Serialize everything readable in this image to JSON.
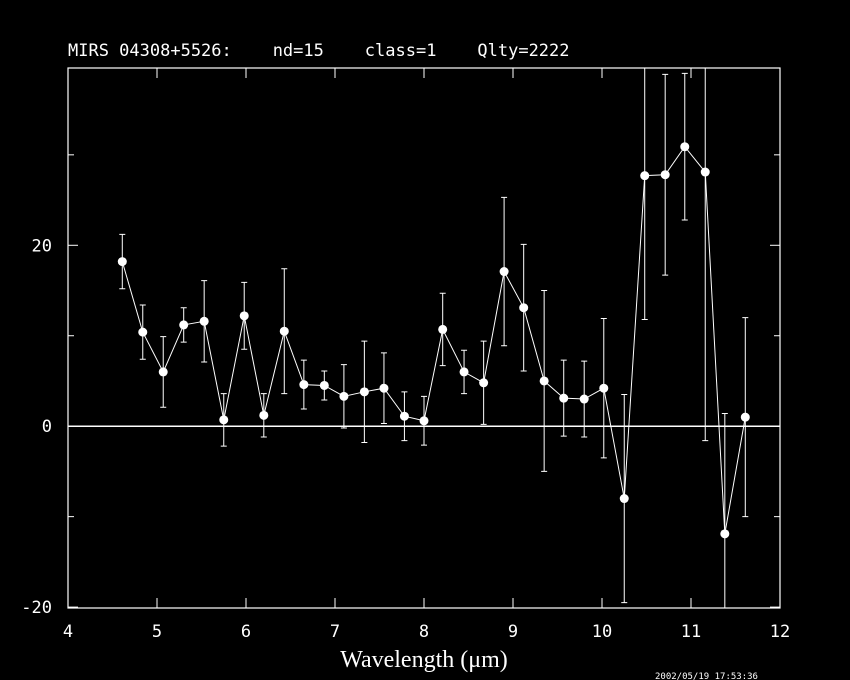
{
  "chart_data": {
    "type": "errorbar",
    "title": "MIRS 04308+5526:    nd=15    class=1    Qlty=2222",
    "x_label": "Wavelength (μm)",
    "timestamp": "2002/05/19 17:53:36",
    "x": [
      4.61,
      4.84,
      5.07,
      5.3,
      5.53,
      5.75,
      5.98,
      6.2,
      6.43,
      6.65,
      6.88,
      7.1,
      7.33,
      7.55,
      7.78,
      8.0,
      8.21,
      8.45,
      8.67,
      8.9,
      9.12,
      9.35,
      9.57,
      9.8,
      10.02,
      10.25,
      10.48,
      10.71,
      10.93,
      11.16,
      11.38,
      11.61
    ],
    "series": [
      {
        "color": "#ffffff",
        "values": [
          18.2,
          10.4,
          6.0,
          11.2,
          11.6,
          0.7,
          12.2,
          1.2,
          10.5,
          4.6,
          4.5,
          3.3,
          3.8,
          4.2,
          1.1,
          0.6,
          10.7,
          6.0,
          4.8,
          17.1,
          13.1,
          5.0,
          3.1,
          3.0,
          4.2,
          -8.0,
          27.7,
          27.8,
          30.9,
          28.1,
          -11.9,
          1.0
        ],
        "errors": [
          3.0,
          3.0,
          3.9,
          1.9,
          4.5,
          2.9,
          3.7,
          2.4,
          6.9,
          2.7,
          1.6,
          3.5,
          5.6,
          3.9,
          2.7,
          2.7,
          4.0,
          2.4,
          4.6,
          8.2,
          7.0,
          10.0,
          4.2,
          4.2,
          7.7,
          11.5,
          15.9,
          11.1,
          8.1,
          29.7,
          13.3,
          11.0
        ]
      }
    ],
    "xlim": [
      4,
      12
    ],
    "xticks": [
      4,
      5,
      6,
      7,
      8,
      9,
      10,
      11,
      12
    ],
    "ylim": [
      -20.1,
      39.6
    ],
    "yticks": [
      -20,
      0,
      20
    ],
    "yminorticks": [
      -10,
      10,
      30
    ],
    "hline": 0
  }
}
